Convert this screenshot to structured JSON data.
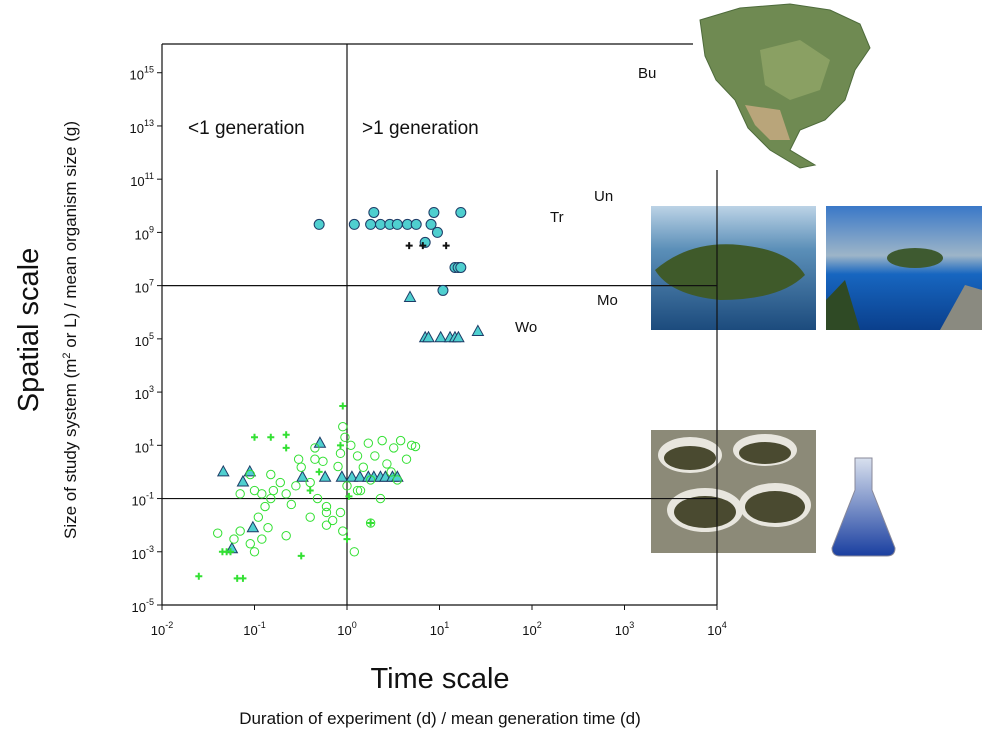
{
  "chart_data": {
    "type": "scatter",
    "x_title": "Time scale",
    "x_label": "Duration of experiment (d) / mean generation time (d)",
    "y_title": "Spatial scale",
    "y_label": [
      "Size of study system (m",
      "2",
      " or L) / mean organism size (g)"
    ],
    "annotations": [
      "<1 generation",
      ">1 generation",
      "Bu",
      "Un",
      "Tr",
      "Mo",
      "Wo"
    ],
    "xscale": "log",
    "yscale": "log",
    "xlim": [
      0.01,
      10000
    ],
    "ylim": [
      1e-05,
      1.2e+16
    ],
    "xticks": [
      {
        "value": 0.01,
        "label": "10",
        "sup": "-2"
      },
      {
        "value": 0.1,
        "label": "10",
        "sup": "-1"
      },
      {
        "value": 1,
        "label": "10",
        "sup": "0"
      },
      {
        "value": 10,
        "label": "10",
        "sup": "1"
      },
      {
        "value": 100,
        "label": "10",
        "sup": "2"
      },
      {
        "value": 1000,
        "label": "10",
        "sup": "3"
      },
      {
        "value": 10000,
        "label": "10",
        "sup": "4"
      }
    ],
    "yticks": [
      {
        "value": 1e-05,
        "label": "10",
        "sup": "-5"
      },
      {
        "value": 0.001,
        "label": "10",
        "sup": "-3"
      },
      {
        "value": 0.1,
        "label": "10",
        "sup": "-1"
      },
      {
        "value": 10,
        "label": "10",
        "sup": "1"
      },
      {
        "value": 1000,
        "label": "10",
        "sup": "3"
      },
      {
        "value": 100000,
        "label": "10",
        "sup": "5"
      },
      {
        "value": 10000000,
        "label": "10",
        "sup": "7"
      },
      {
        "value": 1000000000,
        "label": "10",
        "sup": "9"
      },
      {
        "value": 100000000000,
        "label": "10",
        "sup": "11"
      },
      {
        "value": 10000000000000,
        "label": "10",
        "sup": "13"
      },
      {
        "value": 1000000000000000,
        "label": "10",
        "sup": "15"
      }
    ],
    "vlines": [
      1
    ],
    "hlines": [
      10000000,
      0.1
    ],
    "series": [
      {
        "marker": "circle",
        "color": "#4fcfcf",
        "edge": "#1d3b66",
        "x": [
          0.5,
          1.2,
          1.8,
          2.3,
          2.9,
          3.5,
          4.5,
          5.6,
          1.95,
          8.7,
          17,
          8.1,
          9.5,
          7,
          14.7,
          15.9,
          17,
          10.9
        ],
        "y": [
          2000000000,
          2000000000,
          2000000000,
          2000000000,
          2000000000,
          2000000000,
          2000000000,
          2000000000,
          5600000000,
          5600000000,
          5600000000,
          2000000000,
          1000000000,
          420000000,
          48000000,
          48000000,
          48000000,
          6600000
        ]
      },
      {
        "marker": "plus",
        "color": "#111111",
        "x": [
          4.7,
          6.6,
          11.8
        ],
        "y": [
          320000000,
          320000000,
          320000000
        ]
      },
      {
        "marker": "triangle",
        "color": "#4fcfcf",
        "edge": "#1d3b66",
        "x": [
          4.8,
          7,
          7.6,
          10.3,
          13,
          14.7,
          16,
          26,
          0.046,
          0.089,
          0.075,
          0.51,
          0.33,
          0.58,
          0.88,
          1.13,
          1.38,
          1.7,
          1.95,
          2.3,
          2.6,
          3.1,
          3.5,
          0.096,
          0.057
        ],
        "y": [
          3600000,
          110000,
          110000,
          110000,
          110000,
          110000,
          110000,
          190000,
          1,
          1,
          0.42,
          12,
          0.63,
          0.63,
          0.63,
          0.63,
          0.63,
          0.63,
          0.63,
          0.63,
          0.63,
          0.63,
          0.63,
          0.008,
          0.0013
        ]
      },
      {
        "marker": "open-circle",
        "color": "#33e033",
        "x": [
          0.04,
          0.06,
          0.07,
          0.09,
          0.1,
          0.12,
          0.14,
          0.11,
          0.13,
          0.15,
          0.1,
          0.12,
          0.16,
          0.19,
          0.22,
          0.28,
          0.32,
          0.4,
          0.45,
          0.48,
          0.6,
          0.7,
          0.8,
          0.85,
          0.95,
          1.1,
          1.3,
          1.5,
          1.7,
          1.8,
          2,
          2.4,
          2.7,
          3.2,
          3.8,
          4.4,
          5,
          5.5,
          0.9,
          0.6,
          0.4,
          0.25,
          0.3,
          0.45,
          0.55,
          0.6,
          0.85,
          1.3,
          3,
          3.5,
          0.09,
          0.15,
          0.07,
          0.22,
          0.9,
          1.4,
          2.3,
          1,
          1.2,
          1.8
        ],
        "y": [
          0.005,
          0.003,
          0.006,
          0.002,
          0.001,
          0.003,
          0.008,
          0.02,
          0.05,
          0.1,
          0.2,
          0.15,
          0.2,
          0.4,
          0.15,
          0.3,
          1.5,
          0.4,
          3,
          0.1,
          0.05,
          0.015,
          1.6,
          5,
          20,
          10,
          4,
          1.5,
          12,
          0.5,
          4,
          15,
          2,
          8,
          15,
          3,
          10,
          9,
          50,
          0.01,
          0.02,
          0.06,
          3,
          8,
          2.5,
          0.03,
          0.03,
          0.2,
          1,
          0.5,
          0.8,
          0.8,
          0.15,
          0.004,
          0.006,
          0.2,
          0.1,
          0.3,
          0.001,
          0.012
        ]
      },
      {
        "marker": "plus",
        "color": "#33e033",
        "x": [
          0.025,
          0.065,
          0.075,
          0.05,
          0.045,
          0.055,
          0.32,
          0.1,
          0.15,
          0.22,
          0.9,
          0.22,
          0.85,
          1,
          1.8,
          1.05,
          0.4,
          0.5
        ],
        "y": [
          0.00012,
          0.0001,
          0.0001,
          0.001,
          0.001,
          0.001,
          0.0007,
          20,
          20,
          25,
          300,
          8,
          10,
          0.003,
          0.012,
          0.12,
          0.2,
          1
        ]
      }
    ]
  }
}
